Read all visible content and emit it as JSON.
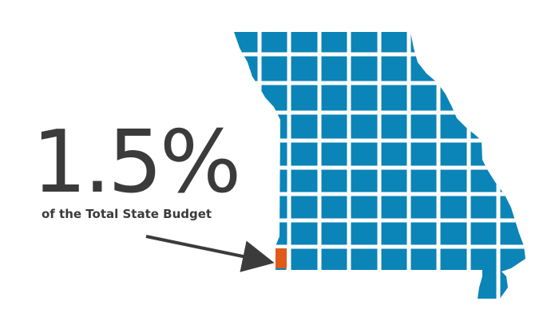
{
  "infographic": {
    "percentage": "1.5%",
    "caption": "of the Total State Budget",
    "share_percent": 1.5
  },
  "map": {
    "icon": "missouri-state-map-icon",
    "grid_color": "#0b84b8",
    "highlight_color": "#e05a1b",
    "highlighted_cell": "bottom-left cell"
  },
  "colors": {
    "text": "#3b3b3b",
    "arrow": "#3b3b3b"
  }
}
